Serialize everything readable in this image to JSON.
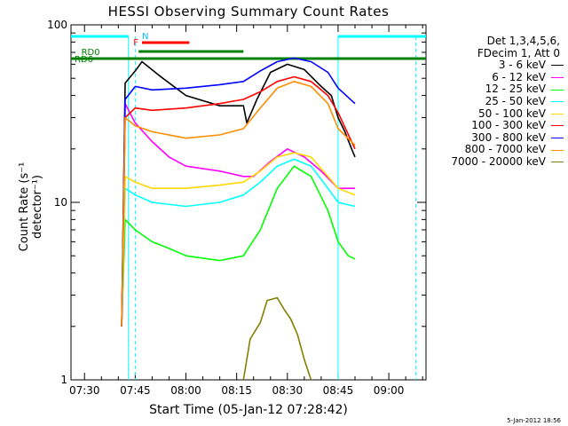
{
  "chart_data": {
    "type": "line",
    "title": "HESSI Observing Summary Count Rates",
    "xlabel": "Start Time (05-Jan-12 07:28:42)",
    "ylabel": "Count Rate (s⁻¹ detector⁻¹)",
    "yscale": "log",
    "ylim": [
      1,
      100
    ],
    "xlim": [
      "07:26",
      "09:11"
    ],
    "xticks": [
      "07:30",
      "07:45",
      "08:00",
      "08:15",
      "08:30",
      "08:45",
      "09:00"
    ],
    "yticks": [
      {
        "value": 1,
        "label": "1"
      },
      {
        "value": 10,
        "label": "10"
      },
      {
        "value": 100,
        "label": "100"
      }
    ],
    "legend_placement": "right",
    "legend_header": [
      "Det 1,3,4,5,6,",
      "FDecim 1, Att 0"
    ],
    "series": [
      {
        "name": "3 - 6 keV",
        "color": "#000000",
        "points": [
          [
            "07:41",
            2
          ],
          [
            "07:42",
            47
          ],
          [
            "07:45",
            55
          ],
          [
            "07:47",
            62
          ],
          [
            "07:52",
            52
          ],
          [
            "08:00",
            40
          ],
          [
            "08:10",
            35
          ],
          [
            "08:17",
            35
          ],
          [
            "08:18",
            28
          ],
          [
            "08:21",
            38
          ],
          [
            "08:25",
            54
          ],
          [
            "08:30",
            60
          ],
          [
            "08:35",
            56
          ],
          [
            "08:40",
            45
          ],
          [
            "08:43",
            40
          ],
          [
            "08:45",
            30
          ],
          [
            "08:47",
            25
          ],
          [
            "08:49",
            20
          ],
          [
            "08:50",
            18
          ]
        ]
      },
      {
        "name": "6 - 12 keV",
        "color": "#ff00ff",
        "points": [
          [
            "07:41",
            2
          ],
          [
            "07:42",
            36
          ],
          [
            "07:45",
            28
          ],
          [
            "07:50",
            22
          ],
          [
            "07:55",
            18
          ],
          [
            "08:00",
            16
          ],
          [
            "08:10",
            15
          ],
          [
            "08:17",
            14
          ],
          [
            "08:20",
            14
          ],
          [
            "08:25",
            17
          ],
          [
            "08:30",
            20
          ],
          [
            "08:35",
            18
          ],
          [
            "08:40",
            15
          ],
          [
            "08:45",
            12
          ],
          [
            "08:50",
            12
          ]
        ]
      },
      {
        "name": "12 - 25 keV",
        "color": "#00ff00",
        "points": [
          [
            "07:41",
            2
          ],
          [
            "07:42",
            8
          ],
          [
            "07:45",
            7
          ],
          [
            "07:50",
            6
          ],
          [
            "07:55",
            5.5
          ],
          [
            "08:00",
            5
          ],
          [
            "08:10",
            4.7
          ],
          [
            "08:17",
            5
          ],
          [
            "08:22",
            7
          ],
          [
            "08:27",
            12
          ],
          [
            "08:32",
            16
          ],
          [
            "08:37",
            14
          ],
          [
            "08:42",
            9
          ],
          [
            "08:45",
            6
          ],
          [
            "08:48",
            5
          ],
          [
            "08:50",
            4.8
          ]
        ]
      },
      {
        "name": "25 - 50 keV",
        "color": "#00ffff",
        "points": [
          [
            "07:41",
            2
          ],
          [
            "07:42",
            12
          ],
          [
            "07:45",
            11
          ],
          [
            "07:50",
            10
          ],
          [
            "08:00",
            9.5
          ],
          [
            "08:10",
            10
          ],
          [
            "08:17",
            11
          ],
          [
            "08:22",
            13
          ],
          [
            "08:27",
            16
          ],
          [
            "08:32",
            17.5
          ],
          [
            "08:37",
            16
          ],
          [
            "08:42",
            12
          ],
          [
            "08:45",
            10
          ],
          [
            "08:50",
            9.5
          ]
        ]
      },
      {
        "name": "50 - 100 keV",
        "color": "#ffd700",
        "points": [
          [
            "07:41",
            2
          ],
          [
            "07:42",
            14
          ],
          [
            "07:45",
            13
          ],
          [
            "07:50",
            12
          ],
          [
            "08:00",
            12
          ],
          [
            "08:10",
            12.5
          ],
          [
            "08:17",
            13
          ],
          [
            "08:22",
            15
          ],
          [
            "08:27",
            18
          ],
          [
            "08:32",
            19
          ],
          [
            "08:37",
            18
          ],
          [
            "08:42",
            14
          ],
          [
            "08:45",
            12
          ],
          [
            "08:50",
            11
          ]
        ]
      },
      {
        "name": "100 - 300 keV",
        "color": "#ff0000",
        "points": [
          [
            "07:41",
            2
          ],
          [
            "07:42",
            30
          ],
          [
            "07:45",
            34
          ],
          [
            "07:50",
            33
          ],
          [
            "08:00",
            34
          ],
          [
            "08:10",
            36
          ],
          [
            "08:17",
            38
          ],
          [
            "08:22",
            42
          ],
          [
            "08:27",
            48
          ],
          [
            "08:32",
            51
          ],
          [
            "08:37",
            48
          ],
          [
            "08:42",
            40
          ],
          [
            "08:45",
            32
          ],
          [
            "08:50",
            20
          ]
        ]
      },
      {
        "name": "300 - 800 keV",
        "color": "#0000ff",
        "points": [
          [
            "07:41",
            2
          ],
          [
            "07:42",
            38
          ],
          [
            "07:45",
            45
          ],
          [
            "07:50",
            43
          ],
          [
            "08:00",
            44
          ],
          [
            "08:10",
            46
          ],
          [
            "08:17",
            48
          ],
          [
            "08:22",
            55
          ],
          [
            "08:27",
            62
          ],
          [
            "08:32",
            65
          ],
          [
            "08:37",
            62
          ],
          [
            "08:42",
            54
          ],
          [
            "08:45",
            44
          ],
          [
            "08:50",
            36
          ]
        ]
      },
      {
        "name": "800 - 7000 keV",
        "color": "#ff8c00",
        "points": [
          [
            "07:41",
            2
          ],
          [
            "07:42",
            30
          ],
          [
            "07:45",
            27
          ],
          [
            "07:50",
            25
          ],
          [
            "08:00",
            23
          ],
          [
            "08:10",
            24
          ],
          [
            "08:17",
            26
          ],
          [
            "08:22",
            34
          ],
          [
            "08:27",
            44
          ],
          [
            "08:32",
            48
          ],
          [
            "08:37",
            45
          ],
          [
            "08:42",
            36
          ],
          [
            "08:45",
            26
          ],
          [
            "08:50",
            21
          ]
        ]
      },
      {
        "name": "7000 - 20000 keV",
        "color": "#808000",
        "points": [
          [
            "08:17",
            1
          ],
          [
            "08:19",
            1.7
          ],
          [
            "08:22",
            2.1
          ],
          [
            "08:24",
            2.8
          ],
          [
            "08:27",
            2.9
          ],
          [
            "08:29",
            2.5
          ],
          [
            "08:31",
            2.2
          ],
          [
            "08:33",
            1.8
          ],
          [
            "08:35",
            1.3
          ],
          [
            "08:37",
            1
          ]
        ]
      }
    ],
    "annotations": [
      {
        "label": "RD6",
        "color": "#008000"
      },
      {
        "label": "RD0",
        "color": "#008000"
      },
      {
        "label": "F",
        "color": "#ff0000"
      },
      {
        "label": "N",
        "color": "#00bfff"
      }
    ]
  },
  "footer_date": "5-Jan-2012 18:56"
}
